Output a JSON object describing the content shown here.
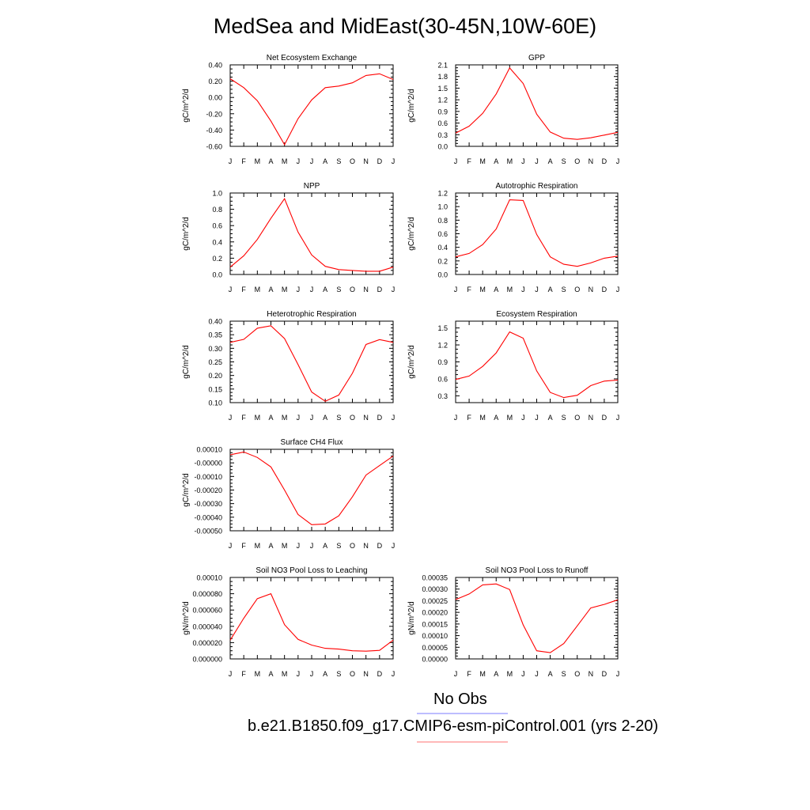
{
  "title": "MedSea and MidEast(30-45N,10W-60E)",
  "months": [
    "J",
    "F",
    "M",
    "A",
    "M",
    "J",
    "J",
    "A",
    "S",
    "O",
    "N",
    "D",
    "J"
  ],
  "legend": [
    {
      "label": "No Obs",
      "color": "#7b7bff"
    },
    {
      "label": "b.e21.B1850.f09_g17.CMIP6-esm-piControl.001 (yrs 2-20)",
      "color": "#ff7070"
    }
  ],
  "line_color": "#ff0000",
  "chart_data": [
    {
      "type": "line",
      "title": "Net Ecosystem Exchange",
      "ylabel": "gC/m^2/d",
      "ylim": [
        -0.6,
        0.4
      ],
      "yticks": [
        -0.6,
        -0.4,
        -0.2,
        0.0,
        0.2,
        0.4
      ],
      "ytick_labels": [
        "-0.60",
        "-0.40",
        "-0.20",
        "0.00",
        "0.20",
        "0.40"
      ],
      "values": [
        0.23,
        0.12,
        -0.04,
        -0.29,
        -0.58,
        -0.26,
        -0.03,
        0.12,
        0.14,
        0.18,
        0.27,
        0.29,
        0.22
      ]
    },
    {
      "type": "line",
      "title": "GPP",
      "ylabel": "gC/m^2/d",
      "ylim": [
        0.0,
        2.1
      ],
      "yticks": [
        0.0,
        0.3,
        0.6,
        0.9,
        1.2,
        1.5,
        1.8,
        2.1
      ],
      "ytick_labels": [
        "0.0",
        "0.3",
        "0.6",
        "0.9",
        "1.2",
        "1.5",
        "1.8",
        "2.1"
      ],
      "values": [
        0.34,
        0.52,
        0.85,
        1.35,
        2.02,
        1.62,
        0.83,
        0.37,
        0.21,
        0.18,
        0.22,
        0.29,
        0.36
      ]
    },
    {
      "type": "line",
      "title": "NPP",
      "ylabel": "gC/m^2/d",
      "ylim": [
        0.0,
        1.0
      ],
      "yticks": [
        0.0,
        0.2,
        0.4,
        0.6,
        0.8,
        1.0
      ],
      "ytick_labels": [
        "0.0",
        "0.2",
        "0.4",
        "0.6",
        "0.8",
        "1.0"
      ],
      "values": [
        0.09,
        0.23,
        0.43,
        0.69,
        0.93,
        0.52,
        0.24,
        0.1,
        0.06,
        0.05,
        0.04,
        0.04,
        0.09
      ]
    },
    {
      "type": "line",
      "title": "Autotrophic Respiration",
      "ylabel": "gC/m^2/d",
      "ylim": [
        0.0,
        1.2
      ],
      "yticks": [
        0.0,
        0.2,
        0.4,
        0.6,
        0.8,
        1.0,
        1.2
      ],
      "ytick_labels": [
        "0.0",
        "0.2",
        "0.4",
        "0.6",
        "0.8",
        "1.0",
        "1.2"
      ],
      "values": [
        0.26,
        0.31,
        0.44,
        0.67,
        1.1,
        1.09,
        0.59,
        0.26,
        0.15,
        0.12,
        0.17,
        0.24,
        0.27
      ]
    },
    {
      "type": "line",
      "title": "Heterotrophic Respiration",
      "ylabel": "gC/m^2/d",
      "ylim": [
        0.1,
        0.4
      ],
      "yticks": [
        0.1,
        0.15,
        0.2,
        0.25,
        0.3,
        0.35,
        0.4
      ],
      "ytick_labels": [
        "0.10",
        "0.15",
        "0.20",
        "0.25",
        "0.30",
        "0.35",
        "0.40"
      ],
      "values": [
        0.322,
        0.333,
        0.374,
        0.383,
        0.336,
        0.24,
        0.139,
        0.105,
        0.128,
        0.208,
        0.314,
        0.332,
        0.322
      ]
    },
    {
      "type": "line",
      "title": "Ecosystem Respiration",
      "ylabel": "gC/m^2/d",
      "ylim": [
        0.18,
        1.62
      ],
      "yticks": [
        0.3,
        0.6,
        0.9,
        1.2,
        1.5
      ],
      "ytick_labels": [
        "0.3",
        "0.6",
        "0.9",
        "1.2",
        "1.5"
      ],
      "values": [
        0.59,
        0.65,
        0.82,
        1.06,
        1.43,
        1.32,
        0.74,
        0.36,
        0.27,
        0.31,
        0.48,
        0.56,
        0.58
      ]
    },
    {
      "type": "line",
      "title": "Surface CH4 Flux",
      "ylabel": "gC/m^2/d",
      "ylim": [
        -0.0005,
        0.0001
      ],
      "yticks": [
        -0.0005,
        -0.0004,
        -0.0003,
        -0.0002,
        -0.0001,
        0.0,
        0.0001
      ],
      "ytick_labels": [
        "-0.00050",
        "-0.00040",
        "-0.00030",
        "-0.00020",
        "-0.00010",
        "-0.00000",
        "0.00010"
      ],
      "values": [
        6e-05,
        8e-05,
        4e-05,
        -3e-05,
        -0.0002,
        -0.00038,
        -0.000455,
        -0.00045,
        -0.00039,
        -0.00025,
        -9e-05,
        -2e-05,
        5e-05
      ]
    },
    null,
    {
      "type": "line",
      "title": "Soil NO3 Pool Loss to Leaching",
      "ylabel": "gN/m^2/d",
      "ylim": [
        0.0,
        0.0001
      ],
      "yticks": [
        0.0,
        2e-05,
        4e-05,
        6e-05,
        8e-05,
        0.0001
      ],
      "ytick_labels": [
        "0.000000",
        "0.000020",
        "0.000040",
        "0.000060",
        "0.000080",
        "0.00010"
      ],
      "values": [
        2.3e-05,
        5e-05,
        7.4e-05,
        8e-05,
        4.2e-05,
        2.4e-05,
        1.7e-05,
        1.3e-05,
        1.2e-05,
        1e-05,
        9.5e-06,
        1.05e-05,
        2.3e-05
      ]
    },
    {
      "type": "line",
      "title": "Soil NO3 Pool Loss to Runoff",
      "ylabel": "gN/m^2/d",
      "ylim": [
        0.0,
        0.00035
      ],
      "yticks": [
        0.0,
        5e-05,
        0.0001,
        0.00015,
        0.0002,
        0.00025,
        0.0003,
        0.00035
      ],
      "ytick_labels": [
        "0.00000",
        "0.00005",
        "0.00010",
        "0.00015",
        "0.00020",
        "0.00025",
        "0.00030",
        "0.00035"
      ],
      "values": [
        0.000255,
        0.000279,
        0.000318,
        0.000322,
        0.000298,
        0.000146,
        3.5e-05,
        2.7e-05,
        6.6e-05,
        0.000142,
        0.000219,
        0.000234,
        0.000254
      ]
    }
  ]
}
